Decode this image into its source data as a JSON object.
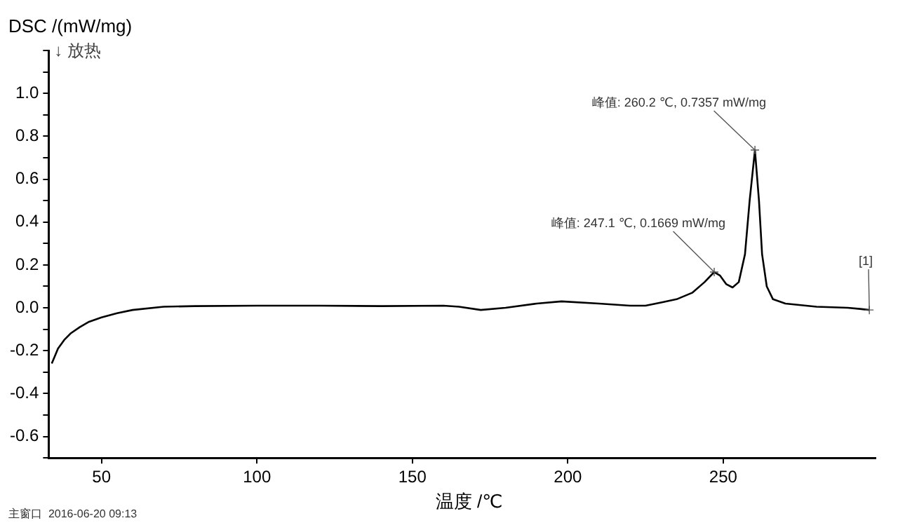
{
  "chart_data": {
    "type": "line",
    "ylabel": "DSC /(mW/mg)",
    "xlabel": "温度 /℃",
    "x": [
      34,
      36,
      38,
      40,
      43,
      46,
      50,
      55,
      60,
      70,
      80,
      100,
      120,
      140,
      160,
      165,
      172,
      180,
      190,
      198,
      210,
      220,
      225,
      230,
      235,
      240,
      244,
      247.1,
      249,
      251,
      253,
      255,
      257,
      258.5,
      260.2,
      261.5,
      262.5,
      264,
      266,
      270,
      280,
      290,
      294,
      297
    ],
    "series": [
      {
        "color": "#000000",
        "values": [
          -0.26,
          -0.19,
          -0.15,
          -0.12,
          -0.09,
          -0.065,
          -0.045,
          -0.025,
          -0.01,
          0.005,
          0.008,
          0.01,
          0.01,
          0.008,
          0.01,
          0.005,
          -0.01,
          0.0,
          0.02,
          0.03,
          0.02,
          0.01,
          0.01,
          0.025,
          0.04,
          0.07,
          0.12,
          0.1669,
          0.15,
          0.11,
          0.095,
          0.12,
          0.25,
          0.5,
          0.7357,
          0.5,
          0.25,
          0.1,
          0.04,
          0.02,
          0.005,
          0.0,
          -0.005,
          -0.01
        ]
      }
    ],
    "xlim": [
      33,
      299
    ],
    "xticks": [
      50,
      100,
      150,
      200,
      250
    ],
    "ylim": [
      -0.7,
      1.2
    ],
    "yticks": [
      {
        "value": -0.7,
        "label": null
      },
      {
        "value": -0.6,
        "label": "-0.6"
      },
      {
        "value": -0.5,
        "label": null
      },
      {
        "value": -0.4,
        "label": "-0.4"
      },
      {
        "value": -0.3,
        "label": null
      },
      {
        "value": -0.2,
        "label": "-0.2"
      },
      {
        "value": -0.1,
        "label": null
      },
      {
        "value": 0,
        "label": "0.0"
      },
      {
        "value": 0.1,
        "label": null
      },
      {
        "value": 0.2,
        "label": "0.2"
      },
      {
        "value": 0.3,
        "label": null
      },
      {
        "value": 0.4,
        "label": "0.4"
      },
      {
        "value": 0.5,
        "label": null
      },
      {
        "value": 0.6,
        "label": "0.6"
      },
      {
        "value": 0.7,
        "label": null
      },
      {
        "value": 0.8,
        "label": "0.8"
      },
      {
        "value": 0.9,
        "label": null
      },
      {
        "value": 1.0,
        "label": "1.0"
      },
      {
        "value": 1.1,
        "label": null
      },
      {
        "value": 1.2,
        "label": null
      }
    ],
    "grid": false,
    "legend": false,
    "marker": "none",
    "line_style": "solid",
    "annotations": [
      {
        "text": "峰值: 247.1 ℃, 0.1669 mW/mg",
        "x": 247.1,
        "y": 0.1669
      },
      {
        "text": "峰值: 260.2 ℃, 0.7357 mW/mg",
        "x": 260.2,
        "y": 0.7357
      },
      {
        "text": "[1]",
        "x": 297,
        "y": -0.01
      },
      "↓ 放热",
      "主窗口  2016-06-20 09:13"
    ]
  }
}
